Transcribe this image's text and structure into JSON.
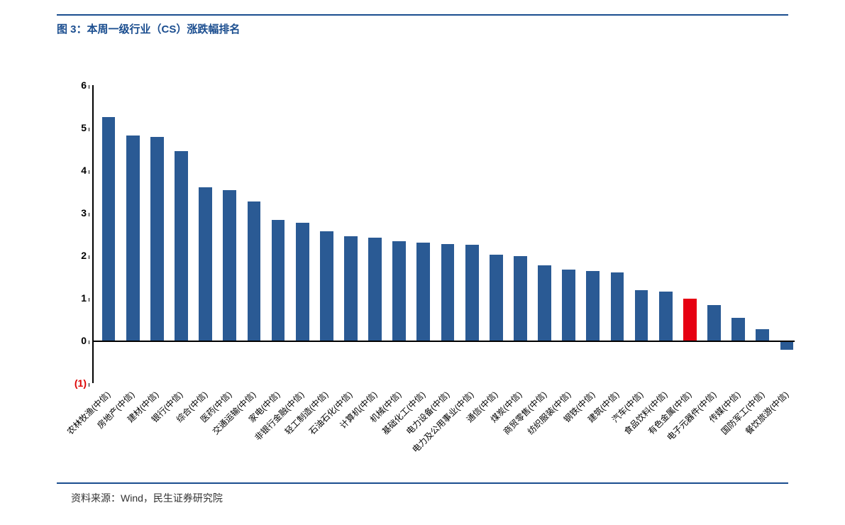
{
  "title": "图 3：本周一级行业（CS）涨跌幅排名",
  "source": "资料来源：Wind，民生证券研究院",
  "chart": {
    "type": "bar",
    "ylim": [
      -1,
      6
    ],
    "ytick_step": 1,
    "yticks": [
      {
        "value": -1,
        "label": "(1)",
        "neg": true
      },
      {
        "value": 0,
        "label": "0"
      },
      {
        "value": 1,
        "label": "1"
      },
      {
        "value": 2,
        "label": "2"
      },
      {
        "value": 3,
        "label": "3"
      },
      {
        "value": 4,
        "label": "4"
      },
      {
        "value": 5,
        "label": "5"
      },
      {
        "value": 6,
        "label": "6"
      }
    ],
    "bar_width_ratio": 0.55,
    "default_color": "#2a5a94",
    "highlight_color": "#e60012",
    "axis_color": "#000000",
    "label_fontsize": 12,
    "ytick_fontsize": 14,
    "title_color": "#1a4d8f",
    "rule_color": "#1a4d8f",
    "background_color": "#ffffff",
    "categories": [
      "农林牧渔(中信)",
      "房地产(中信)",
      "建材(中信)",
      "银行(中信)",
      "综合(中信)",
      "医药(中信)",
      "交通运输(中信)",
      "家电(中信)",
      "非银行金融(中信)",
      "轻工制造(中信)",
      "石油石化(中信)",
      "计算机(中信)",
      "机械(中信)",
      "基础化工(中信)",
      "电力设备(中信)",
      "电力及公用事业(中信)",
      "通信(中信)",
      "煤炭(中信)",
      "商贸零售(中信)",
      "纺织服装(中信)",
      "钢铁(中信)",
      "建筑(中信)",
      "汽车(中信)",
      "食品饮料(中信)",
      "有色金属(中信)",
      "电子元器件(中信)",
      "传媒(中信)",
      "国防军工(中信)",
      "餐饮旅游(中信)"
    ],
    "values": [
      5.25,
      4.82,
      4.78,
      4.45,
      3.6,
      3.53,
      3.27,
      2.83,
      2.77,
      2.56,
      2.45,
      2.42,
      2.34,
      2.3,
      2.27,
      2.25,
      2.02,
      1.99,
      1.77,
      1.67,
      1.64,
      1.6,
      1.18,
      1.15,
      0.98,
      0.83,
      0.54,
      0.27,
      -0.22
    ],
    "highlight_index": 24
  }
}
